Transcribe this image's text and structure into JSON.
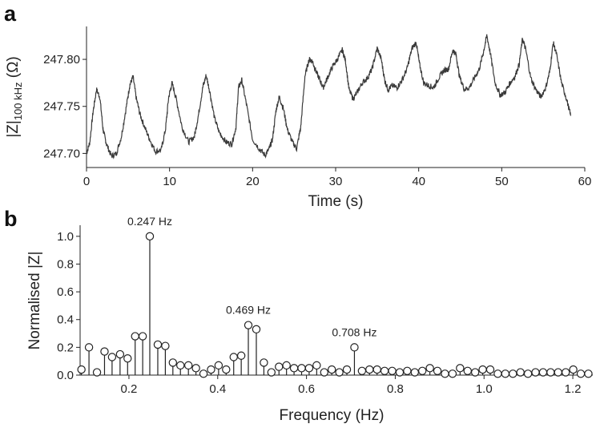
{
  "chart_data": [
    {
      "panel": "a",
      "type": "line",
      "xlabel": "Time (s)",
      "ylabel": {
        "main": "|Z|",
        "sub": "100 kHz",
        "unit": " (Ω)"
      },
      "xlim": [
        0,
        60
      ],
      "ylim": [
        247.685,
        247.835
      ],
      "xticks": [
        0,
        10,
        20,
        30,
        40,
        50,
        60
      ],
      "yticks": [
        247.7,
        247.75,
        247.8
      ],
      "ytick_labels": [
        "247.70",
        "247.75",
        "247.80"
      ],
      "color": "#3a3a3a",
      "series": [
        {
          "x": [
            0.0,
            0.4,
            0.8,
            1.2,
            1.6,
            2.0,
            2.4,
            3.0,
            3.6,
            4.2,
            4.8,
            5.2,
            5.6,
            6.0,
            6.5,
            7.0,
            7.6,
            8.3,
            9.0,
            9.5,
            9.9,
            10.3,
            10.8,
            11.5,
            12.3,
            13.0,
            13.5,
            14.0,
            14.4,
            14.8,
            15.4,
            16.0,
            16.8,
            17.5,
            18.0,
            18.3,
            18.7,
            19.3,
            20.0,
            20.8,
            21.5,
            22.0,
            22.4,
            22.8,
            23.2,
            23.7,
            24.2,
            24.8,
            25.3,
            25.8,
            26.3,
            26.8,
            27.2,
            27.6,
            28.0,
            28.5,
            29.0,
            29.6,
            30.2,
            30.8,
            31.2,
            31.6,
            32.1,
            32.6,
            33.2,
            33.8,
            34.4,
            35.0,
            35.5,
            35.9,
            36.3,
            36.8,
            37.4,
            38.0,
            38.6,
            39.2,
            39.7,
            40.1,
            40.6,
            41.2,
            41.8,
            42.4,
            43.0,
            43.6,
            44.1,
            44.5,
            44.9,
            45.5,
            46.1,
            46.7,
            47.3,
            47.8,
            48.2,
            48.6,
            49.2,
            49.8,
            50.4,
            51.0,
            51.6,
            52.1,
            52.5,
            52.9,
            53.5,
            54.1,
            54.7,
            55.3,
            55.8,
            56.2,
            56.6,
            57.2,
            57.8,
            58.3
          ],
          "y": [
            247.7,
            247.712,
            247.745,
            247.768,
            247.76,
            247.725,
            247.71,
            247.697,
            247.7,
            247.718,
            247.75,
            247.772,
            247.782,
            247.758,
            247.74,
            247.728,
            247.715,
            247.702,
            247.704,
            247.725,
            247.76,
            247.775,
            247.758,
            247.728,
            247.712,
            247.718,
            247.742,
            247.77,
            247.783,
            247.768,
            247.738,
            247.722,
            247.712,
            247.71,
            247.728,
            247.77,
            247.778,
            247.75,
            247.715,
            247.705,
            247.698,
            247.705,
            247.715,
            247.745,
            247.76,
            247.748,
            247.725,
            247.712,
            247.705,
            247.728,
            247.782,
            247.8,
            247.798,
            247.788,
            247.78,
            247.77,
            247.78,
            247.792,
            247.8,
            247.81,
            247.798,
            247.768,
            247.758,
            247.765,
            247.775,
            247.78,
            247.79,
            247.812,
            247.8,
            247.778,
            247.768,
            247.772,
            247.77,
            247.778,
            247.79,
            247.812,
            247.818,
            247.795,
            247.775,
            247.772,
            247.77,
            247.78,
            247.788,
            247.79,
            247.81,
            247.805,
            247.782,
            247.768,
            247.77,
            247.78,
            247.79,
            247.808,
            247.825,
            247.808,
            247.775,
            247.762,
            247.765,
            247.775,
            247.782,
            247.795,
            247.822,
            247.81,
            247.78,
            247.768,
            247.76,
            247.77,
            247.788,
            247.818,
            247.805,
            247.775,
            247.758,
            247.74
          ]
        }
      ]
    },
    {
      "panel": "b",
      "type": "stem",
      "xlabel": "Frequency (Hz)",
      "ylabel": "Normalised |Z|",
      "xlim": [
        0.09,
        1.245
      ],
      "ylim": [
        0.0,
        1.08
      ],
      "xticks": [
        0.2,
        0.4,
        0.6,
        0.8,
        1.0,
        1.2
      ],
      "xtick_labels": [
        "0.2",
        "0.4",
        "0.6",
        "0.8",
        "1.0",
        "1.2"
      ],
      "yticks": [
        0.0,
        0.2,
        0.4,
        0.6,
        0.8,
        1.0
      ],
      "ytick_labels": [
        "0.0",
        "0.2",
        "0.4",
        "0.6",
        "0.8",
        "1.0"
      ],
      "annotations": [
        {
          "text": "0.247 Hz",
          "x": 0.247,
          "y": 1.0
        },
        {
          "text": "0.469 Hz",
          "x": 0.469,
          "y": 0.36
        },
        {
          "text": "0.708 Hz",
          "x": 0.708,
          "y": 0.2
        }
      ],
      "x": [
        0.093,
        0.11,
        0.128,
        0.145,
        0.162,
        0.18,
        0.197,
        0.214,
        0.231,
        0.247,
        0.265,
        0.282,
        0.299,
        0.316,
        0.334,
        0.351,
        0.368,
        0.385,
        0.402,
        0.419,
        0.436,
        0.453,
        0.469,
        0.487,
        0.504,
        0.521,
        0.538,
        0.555,
        0.572,
        0.589,
        0.606,
        0.623,
        0.64,
        0.657,
        0.674,
        0.691,
        0.708,
        0.725,
        0.742,
        0.759,
        0.776,
        0.793,
        0.81,
        0.827,
        0.844,
        0.861,
        0.878,
        0.895,
        0.912,
        0.929,
        0.946,
        0.963,
        0.98,
        0.997,
        1.014,
        1.031,
        1.048,
        1.065,
        1.082,
        1.099,
        1.116,
        1.133,
        1.15,
        1.167,
        1.184,
        1.201,
        1.218,
        1.235
      ],
      "values": [
        0.04,
        0.2,
        0.02,
        0.17,
        0.13,
        0.15,
        0.12,
        0.28,
        0.28,
        1.0,
        0.22,
        0.21,
        0.09,
        0.07,
        0.07,
        0.05,
        0.01,
        0.04,
        0.07,
        0.04,
        0.13,
        0.14,
        0.36,
        0.33,
        0.09,
        0.02,
        0.06,
        0.07,
        0.05,
        0.05,
        0.05,
        0.07,
        0.02,
        0.04,
        0.02,
        0.04,
        0.2,
        0.03,
        0.04,
        0.04,
        0.03,
        0.03,
        0.02,
        0.03,
        0.02,
        0.03,
        0.05,
        0.03,
        0.01,
        0.01,
        0.05,
        0.03,
        0.02,
        0.04,
        0.04,
        0.01,
        0.01,
        0.01,
        0.02,
        0.01,
        0.02,
        0.02,
        0.02,
        0.02,
        0.02,
        0.04,
        0.01,
        0.01
      ]
    }
  ]
}
